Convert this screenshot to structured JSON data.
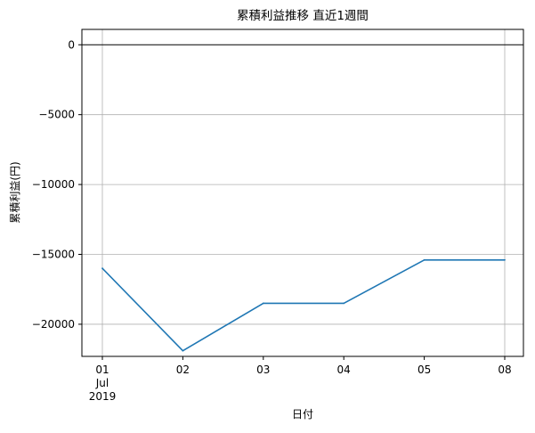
{
  "chart_data": {
    "type": "line",
    "title": "累積利益推移 直近1週間",
    "xlabel": "日付",
    "ylabel": "累積利益(円)",
    "categories": [
      "01",
      "02",
      "03",
      "04",
      "05",
      "08"
    ],
    "x_sublabels": [
      "Jul",
      "2019"
    ],
    "series": [
      {
        "values": [
          -16000,
          -21900,
          -18500,
          -18500,
          -15400,
          -15400
        ]
      }
    ],
    "yticks": [
      0,
      -5000,
      -10000,
      -15000,
      -20000
    ],
    "ytick_labels": [
      "0",
      "−5000",
      "−10000",
      "−15000",
      "−20000"
    ],
    "ylim": [
      -22300,
      1100
    ],
    "reference_line": 0,
    "grid": true,
    "legend": "none",
    "colors": {
      "line": "#1f77b4",
      "grid": "#b0b0b0",
      "axis": "#000000",
      "zero_line": "#000000"
    }
  }
}
